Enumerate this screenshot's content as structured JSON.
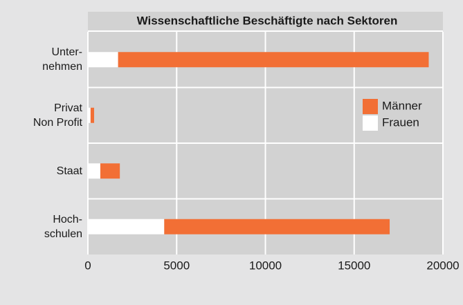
{
  "chart_data": {
    "type": "stacked-bar-horizontal",
    "title": "Wissenschaftliche Beschäftigte nach Sektoren",
    "categories": [
      "Unter-\nnehmen",
      "Privat\nNon Profit",
      "Staat",
      "Hoch-\nschulen"
    ],
    "series": [
      {
        "name": "Männer",
        "color": "#f26f35",
        "values": [
          17500,
          200,
          1100,
          12700
        ]
      },
      {
        "name": "Frauen",
        "color": "#ffffff",
        "values": [
          1700,
          150,
          700,
          4300
        ]
      }
    ],
    "xlim": [
      0,
      20000
    ],
    "xticks": [
      0,
      5000,
      10000,
      15000,
      20000
    ],
    "grid": true,
    "legend": "right"
  }
}
